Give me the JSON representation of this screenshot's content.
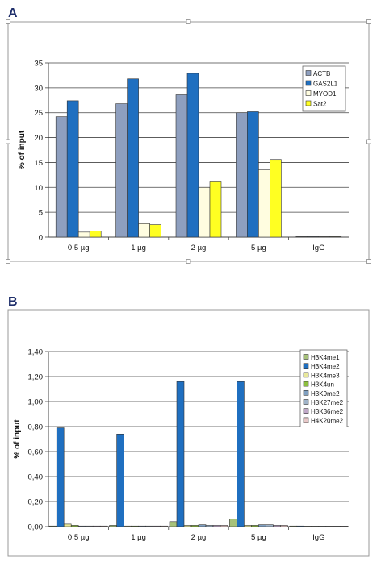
{
  "panels": {
    "a_label": "A",
    "b_label": "B"
  },
  "chart_data": [
    {
      "type": "bar",
      "categories": [
        "0,5 µg",
        "1 µg",
        "2 µg",
        "5 µg",
        "IgG"
      ],
      "ylabel": "% of input",
      "xlabel": "",
      "ylim": [
        0,
        35
      ],
      "yticks": [
        "0",
        "5",
        "10",
        "15",
        "20",
        "25",
        "30",
        "35"
      ],
      "grid": true,
      "legend": "top-right",
      "series": [
        {
          "name": "ACTB",
          "color": "#8e9fbf",
          "values": [
            24.2,
            26.8,
            28.6,
            25.0,
            0.1
          ]
        },
        {
          "name": "GAS2L1",
          "color": "#1f6fc0",
          "values": [
            27.4,
            31.8,
            32.9,
            25.2,
            0.1
          ]
        },
        {
          "name": "MYOD1",
          "color": "#fffde0",
          "values": [
            1.0,
            2.7,
            10.0,
            13.5,
            0.05
          ]
        },
        {
          "name": "Sat2",
          "color": "#ffff22",
          "values": [
            1.2,
            2.5,
            11.1,
            15.6,
            0.05
          ]
        }
      ]
    },
    {
      "type": "bar",
      "categories": [
        "0,5 µg",
        "1 µg",
        "2 µg",
        "5 µg",
        "IgG"
      ],
      "ylabel": "% of input",
      "xlabel": "",
      "ylim": [
        0,
        1.4
      ],
      "yticks": [
        "0,00",
        "0,20",
        "0,40",
        "0,60",
        "0,80",
        "1,00",
        "1,20",
        "1,40"
      ],
      "grid": true,
      "legend": "top-right",
      "series": [
        {
          "name": "H3K4me1",
          "color": "#a7c27a",
          "values": [
            0.005,
            0.01,
            0.04,
            0.06,
            0.005
          ]
        },
        {
          "name": "H3K4me2",
          "color": "#1f6fc0",
          "values": [
            0.79,
            0.74,
            1.16,
            1.16,
            0.005
          ]
        },
        {
          "name": "H3K4me3",
          "color": "#e8e89a",
          "values": [
            0.02,
            0.005,
            0.01,
            0.01,
            0.0
          ]
        },
        {
          "name": "H3K4un",
          "color": "#8dbf3f",
          "values": [
            0.01,
            0.005,
            0.01,
            0.01,
            0.0
          ]
        },
        {
          "name": "H3K9me2",
          "color": "#7f9fc0",
          "values": [
            0.005,
            0.005,
            0.015,
            0.015,
            0.0
          ]
        },
        {
          "name": "H3K27me2",
          "color": "#9fb3c8",
          "values": [
            0.005,
            0.005,
            0.01,
            0.015,
            0.0
          ]
        },
        {
          "name": "H3K36me2",
          "color": "#c0a8c8",
          "values": [
            0.005,
            0.005,
            0.01,
            0.01,
            0.0
          ]
        },
        {
          "name": "H4K20me2",
          "color": "#e8c8c8",
          "values": [
            0.005,
            0.005,
            0.01,
            0.01,
            0.0
          ]
        }
      ]
    }
  ]
}
